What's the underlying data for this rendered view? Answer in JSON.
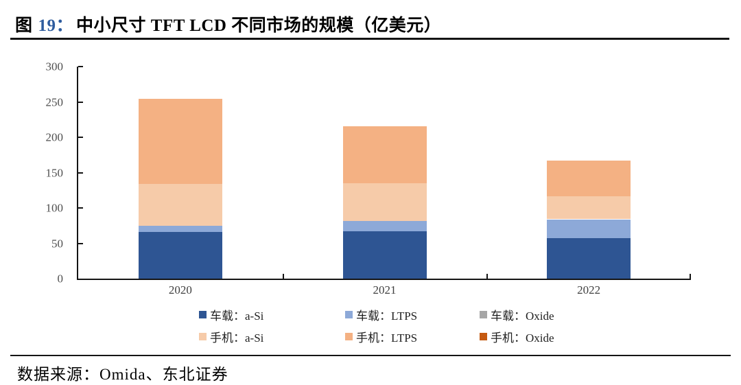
{
  "header": {
    "figure_prefix": "图",
    "figure_number": "19：",
    "title_text": "中小尺寸 TFT LCD 不同市场的规模（亿美元）"
  },
  "footer": {
    "source": "数据来源：Omida、东北证券"
  },
  "colors": {
    "figure_number_blue": "#2E5C9E",
    "axis_line": "#141414",
    "tick_label_gray": "#4f4f4f"
  },
  "chart_data": {
    "type": "bar",
    "stacked": true,
    "title": "中小尺寸 TFT LCD 不同市场的规模（亿美元）",
    "unit": "亿美元",
    "categories": [
      "2020",
      "2021",
      "2022"
    ],
    "series": [
      {
        "name": "车载：a-Si",
        "color": "#2E5593",
        "values": [
          66,
          67,
          57
        ]
      },
      {
        "name": "车载：LTPS",
        "color": "#8DA9D8",
        "values": [
          9,
          15,
          27
        ]
      },
      {
        "name": "车载：Oxide",
        "color": "#A6A6A6",
        "values": [
          0,
          0,
          0
        ]
      },
      {
        "name": "手机：a-Si",
        "color": "#F6CBA9",
        "values": [
          59,
          53,
          33
        ]
      },
      {
        "name": "手机：LTPS",
        "color": "#F4B183",
        "values": [
          120,
          81,
          50
        ]
      },
      {
        "name": "手机：Oxide",
        "color": "#C55A11",
        "values": [
          0,
          0,
          0
        ]
      }
    ],
    "totals": [
      254,
      216,
      167
    ],
    "ylim": [
      0,
      300
    ],
    "yticks": [
      0,
      50,
      100,
      150,
      200,
      250,
      300
    ],
    "xlabel": "",
    "ylabel": "",
    "grid": false,
    "legend_position": "bottom"
  }
}
